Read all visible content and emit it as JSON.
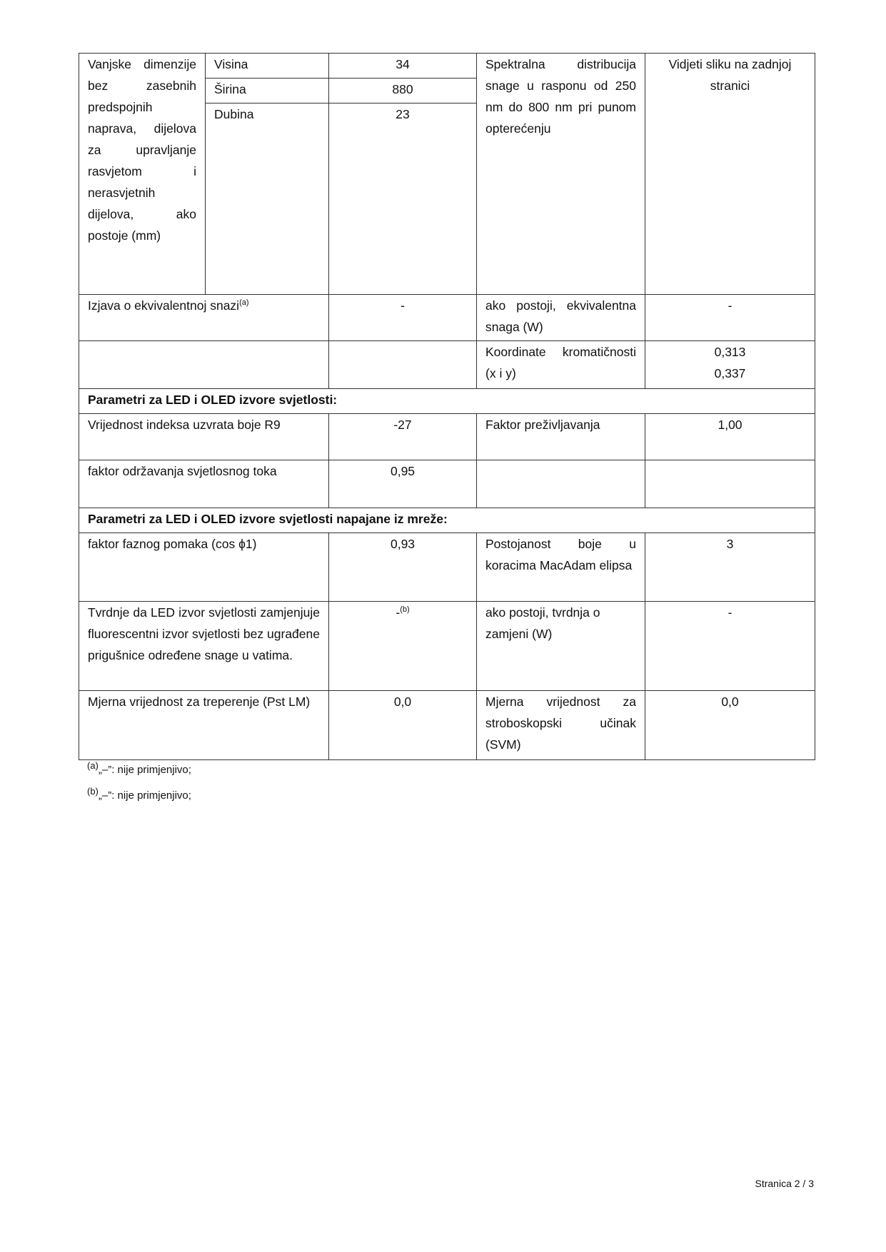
{
  "table": {
    "dimensions": {
      "label": "Vanjske dimenzije bez zasebnih predspojnih naprava, dijelova za upravljanje rasvjetom i nerasvjetnih dijelova, ako postoje (mm)",
      "rows": [
        {
          "label": "Visina",
          "value": "34"
        },
        {
          "label": "Širina",
          "value": "880"
        },
        {
          "label": "Dubina",
          "value": "23"
        }
      ],
      "spectral_label": "Spektralna distribucija snage u rasponu od 250 nm do 800 nm pri punom opterećenju",
      "spectral_value": "Vidjeti sliku na zadnjoj stranici"
    },
    "equiv": {
      "label": "Izjava o ekvivalentnoj snazi",
      "sup": "(a)",
      "value": "-",
      "label2": "ako postoji, ekvivalentna snaga (W)",
      "value2": "-"
    },
    "chroma": {
      "label": "Koordinate kromatičnosti (x i y)",
      "x": "0,313",
      "y": "0,337"
    },
    "section1": "Parametri za LED i OLED izvore svjetlosti:",
    "r9": {
      "label": "Vrijednost indeksa uzvrata boje R9",
      "value": "-27",
      "label2": "Faktor preživljavanja",
      "value2": "1,00"
    },
    "lumen": {
      "label": "faktor održavanja svjetlosnog toka",
      "value": "0,95"
    },
    "section2": "Parametri za LED i OLED izvore svjetlosti napajane iz mreže:",
    "cos": {
      "label": "faktor faznog pomaka (cos ϕ1)",
      "value": "0,93",
      "label2": "Postojanost boje u koracima MacAdam elipsa",
      "value2": "3"
    },
    "claim": {
      "label": "Tvrdnje da LED izvor svjetlosti zamjenjuje fluorescentni izvor svjetlosti bez ugrađene prigušnice određene snage u vatima.",
      "value": "-",
      "sup": "(b)",
      "label2": "ako postoji, tvrdnja o zamjeni (W)",
      "value2": "-"
    },
    "flicker": {
      "label": "Mjerna vrijednost za treperenje (Pst LM)",
      "value": "0,0",
      "label2": "Mjerna vrijednost za stroboskopski učinak (SVM)",
      "value2": "0,0"
    }
  },
  "footnotes": [
    {
      "mark": "(a)",
      "text": "„–”: nije primjenjivo;"
    },
    {
      "mark": "(b)",
      "text": "„–”: nije primjenjivo;"
    }
  ],
  "page_number": "Stranica 2 / 3"
}
